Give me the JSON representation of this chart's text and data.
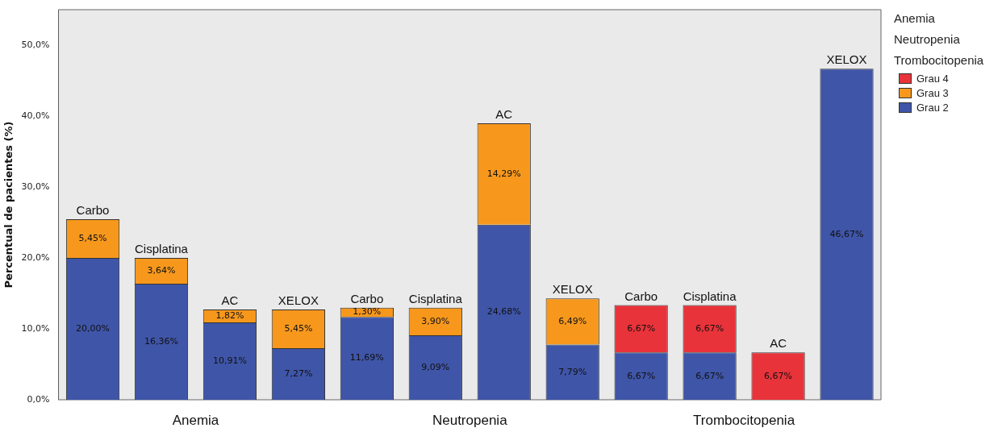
{
  "chart_data": {
    "type": "bar",
    "stacked": true,
    "ylabel": "Percentual de pacientes (%)",
    "legend_title": "Anemia\nNeutropenia\nTrombocitopenia",
    "legend": "top right",
    "categories": [
      "Carbo",
      "Cisplatina",
      "AC",
      "XELOX",
      "Carbo",
      "Cisplatina",
      "AC",
      "XELOX",
      "Carbo",
      "Cisplatina",
      "AC",
      "XELOX"
    ],
    "series": [
      {
        "name": "Grau 2",
        "color": "#3f55a8",
        "values": [
          20.0,
          16.36,
          10.91,
          7.27,
          11.69,
          9.09,
          24.68,
          7.79,
          6.67,
          6.67,
          null,
          46.67
        ],
        "value_labels": [
          "20,00%",
          "16,36%",
          "10,91%",
          "7,27%",
          "11,69%",
          "9,09%",
          "24,68%",
          "7,79%",
          "6,67%",
          "6,67%",
          null,
          "46,67%"
        ]
      },
      {
        "name": "Grau 3",
        "color": "#f7981d",
        "values": [
          5.45,
          3.64,
          1.82,
          5.45,
          1.3,
          3.9,
          14.29,
          6.49,
          null,
          null,
          null,
          null
        ],
        "value_labels": [
          "5,45%",
          "3,64%",
          "1,82%",
          "5,45%",
          "1,30%",
          "3,90%",
          "14,29%",
          "6,49%",
          null,
          null,
          null,
          null
        ]
      },
      {
        "name": "Grau 4",
        "color": "#e8333a",
        "values": [
          null,
          null,
          null,
          null,
          null,
          null,
          null,
          null,
          6.67,
          6.67,
          6.67,
          null
        ],
        "value_labels": [
          null,
          null,
          null,
          null,
          null,
          null,
          null,
          null,
          "6,67%",
          "6,67%",
          "6,67%",
          null
        ]
      }
    ],
    "ylim": [
      0,
      55
    ],
    "yticks": [
      {
        "value": 0,
        "label": "0,0%"
      },
      {
        "value": 10,
        "label": "10,0%"
      },
      {
        "value": 20,
        "label": "20,0%"
      },
      {
        "value": 30,
        "label": "30,0%"
      },
      {
        "value": 40,
        "label": "40,0%"
      },
      {
        "value": 50,
        "label": "50,0%"
      }
    ],
    "grid": false,
    "annotations": [
      "Anemia",
      "Neutropenia",
      "Trombocitopenia"
    ]
  }
}
